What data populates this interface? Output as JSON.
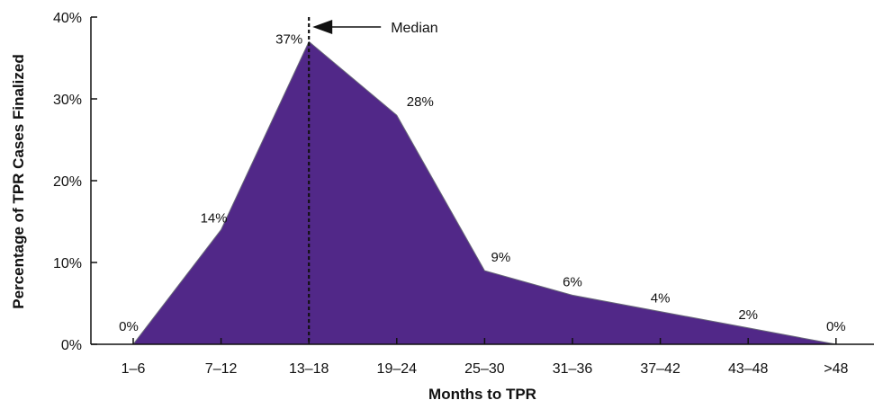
{
  "chart_data": {
    "type": "area",
    "title": "",
    "xlabel": "Months to TPR",
    "ylabel": "Percentage of TPR Cases Finalized",
    "categories": [
      "1–6",
      "7–12",
      "13–18",
      "19–24",
      "25–30",
      "31–36",
      "37–42",
      "43–48",
      ">48"
    ],
    "values": [
      0,
      14,
      37,
      28,
      9,
      6,
      4,
      2,
      0
    ],
    "data_labels": [
      "0%",
      "14%",
      "37%",
      "28%",
      "9%",
      "6%",
      "4%",
      "2%",
      "0%"
    ],
    "yticks": [
      0,
      10,
      20,
      30,
      40
    ],
    "ytick_labels": [
      "0%",
      "10%",
      "20%",
      "30%",
      "40%"
    ],
    "ylim": [
      0,
      40
    ],
    "fill_color": "#512888",
    "grid": false,
    "legend": "none",
    "annotation": {
      "text": "Median",
      "category": "13–18"
    }
  }
}
